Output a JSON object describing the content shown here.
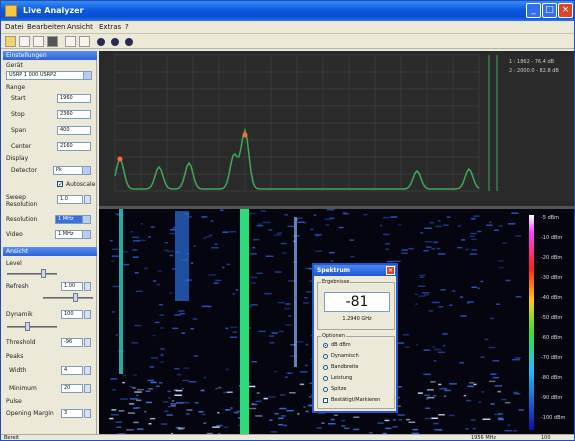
{
  "window": {
    "title": "Live Analyzer",
    "accent": "#0a5ae0"
  },
  "menu": [
    "Datei",
    "Bearbeiten",
    "Ansicht",
    "Extras",
    "?"
  ],
  "toolbar": {
    "icons": [
      "open-icon",
      "save-icon",
      "print-icon",
      "camera-icon",
      "settings-icon",
      "play-icon",
      "record-icon",
      "stop-icon"
    ]
  },
  "left_panel": {
    "section1": "Einstellungen",
    "device_label": "Gerät",
    "device_value": "USRP 1 000 USRP2",
    "range_label": "Range",
    "start_label": "Start",
    "start_value": "1960",
    "stop_label": "Stop",
    "stop_value": "2360",
    "span_label": "Span",
    "span_value": "400",
    "center_label": "Center",
    "center_value": "2160",
    "display_label": "Display",
    "detector_label": "Detector",
    "detector_value": "Pk",
    "autoscale_label": "Autoscale",
    "sweep_label": "Sweep Resolution",
    "sweep_value": "1.0",
    "resolution_label": "Resolution",
    "resolution_value": "1 MHz",
    "video_label": "Video",
    "video_value": "1 MHz",
    "section2": "Ansicht",
    "level_label": "Level",
    "refresh_label": "Refresh",
    "refresh_value": "1.00",
    "dynamic_label": "Dynamik",
    "dynamic_value": "100",
    "threshold_label": "Threshold",
    "threshold_value": "-96",
    "peaks_label": "Peaks",
    "width_label": "Width",
    "width_value": "4",
    "minimum_label": "Minimum",
    "minimum_value": "20",
    "pulse_label": "Pulse",
    "opening_label": "Opening Margin",
    "opening_value": "3"
  },
  "spectrum": {
    "marker1": "1 : 1862 - 76.4 dB",
    "marker2": "2 : 2000.0 - 82.8 dB",
    "line_color": "#3fa85a",
    "peak_color": "#ff6a3a"
  },
  "waterfall": {
    "scale": [
      "-5 dBm",
      "-10 dBm",
      "-20 dBm",
      "-30 dBm",
      "-40 dBm",
      "-50 dBm",
      "-60 dBm",
      "-70 dBm",
      "-80 dBm",
      "-90 dBm",
      "-100 dBm"
    ],
    "trace_colors": [
      "#2dd5c4",
      "#2bdc7a",
      "#2b6fe0",
      "#8fb6ff"
    ]
  },
  "dialog": {
    "title": "Spektrum",
    "group1": "Ergebnisse",
    "value": "-81",
    "frequency": "1.2940 GHz",
    "group2": "Optionen",
    "options": [
      "dB dBm",
      "Dynamisch",
      "Bandbreite",
      "Leistung",
      "Spitze"
    ],
    "selected_option": 0,
    "checkbox_label": "Bestätigt/Markieren"
  },
  "status": {
    "left": "Bereit",
    "right1": "1956 MHz",
    "right2": "100"
  }
}
